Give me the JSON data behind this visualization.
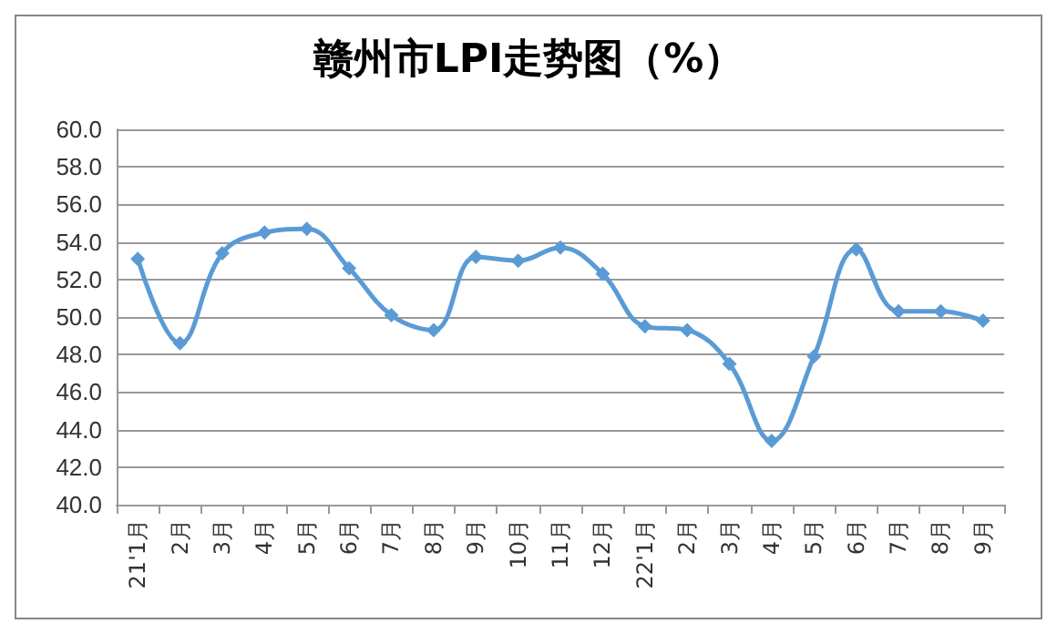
{
  "chart_data": {
    "type": "line",
    "title": "赣州市LPI走势图（%）",
    "categories": [
      "21'1月",
      "2月",
      "3月",
      "4月",
      "5月",
      "6月",
      "7月",
      "8月",
      "9月",
      "10月",
      "11月",
      "12月",
      "22'1月",
      "2月",
      "3月",
      "4月",
      "5月",
      "6月",
      "7月",
      "8月",
      "9月"
    ],
    "series": [
      {
        "color": "#5b9bd5",
        "values": [
          53.1,
          48.6,
          53.4,
          54.5,
          54.7,
          52.6,
          50.1,
          49.3,
          53.2,
          53.0,
          53.7,
          52.3,
          49.5,
          49.3,
          47.5,
          43.4,
          47.9,
          53.6,
          50.3,
          50.3,
          49.8
        ]
      }
    ],
    "ylim": [
      40,
      60
    ],
    "yticks": [
      {
        "value": 40,
        "label": "40.0"
      },
      {
        "value": 42,
        "label": "42.0"
      },
      {
        "value": 44,
        "label": "44.0"
      },
      {
        "value": 46,
        "label": "46.0"
      },
      {
        "value": 48,
        "label": "48.0"
      },
      {
        "value": 50,
        "label": "50.0"
      },
      {
        "value": 52,
        "label": "52.0"
      },
      {
        "value": 54,
        "label": "54.0"
      },
      {
        "value": 56,
        "label": "56.0"
      },
      {
        "value": 58,
        "label": "58.0"
      },
      {
        "value": 60,
        "label": "60.0"
      }
    ],
    "grid": "y",
    "marker": "diamond",
    "line_style": "solid"
  }
}
